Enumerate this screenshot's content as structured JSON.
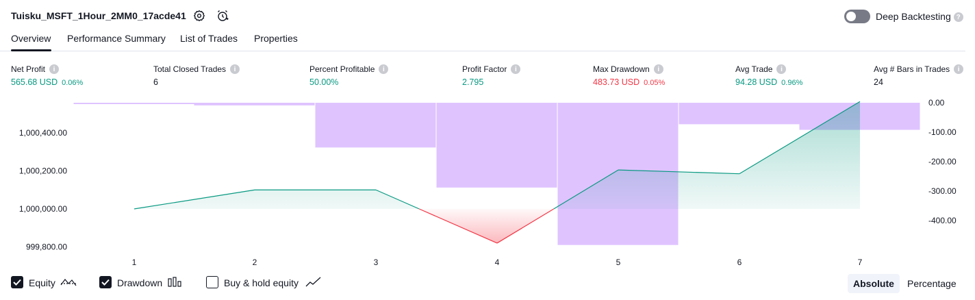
{
  "header": {
    "title": "Tuisku_MSFT_1Hour_2MM0_17acde41",
    "deep_backtesting_label": "Deep Backtesting",
    "deep_backtesting_enabled": false
  },
  "tabs": [
    {
      "label": "Overview",
      "active": true
    },
    {
      "label": "Performance Summary",
      "active": false
    },
    {
      "label": "List of Trades",
      "active": false
    },
    {
      "label": "Properties",
      "active": false
    }
  ],
  "metrics": [
    {
      "label": "Net Profit",
      "value": "565.68 USD",
      "sub": "0.06%",
      "color": "#089981"
    },
    {
      "label": "Total Closed Trades",
      "value": "6",
      "sub": "",
      "color": "#131722"
    },
    {
      "label": "Percent Profitable",
      "value": "50.00%",
      "sub": "",
      "color": "#089981"
    },
    {
      "label": "Profit Factor",
      "value": "2.795",
      "sub": "",
      "color": "#089981"
    },
    {
      "label": "Max Drawdown",
      "value": "483.73 USD",
      "sub": "0.05%",
      "color": "#f23645"
    },
    {
      "label": "Avg Trade",
      "value": "94.28 USD",
      "sub": "0.96%",
      "color": "#089981"
    },
    {
      "label": "Avg # Bars in Trades",
      "value": "24",
      "sub": "",
      "color": "#131722"
    }
  ],
  "chart_data": {
    "type": "line",
    "x": [
      1,
      2,
      3,
      4,
      5,
      6,
      7
    ],
    "equity_baseline": 1000000,
    "series": [
      {
        "values": [
          1000000,
          1000100,
          1000100,
          999820,
          1000205,
          1000185,
          1000565
        ]
      },
      {
        "values": [
          -2,
          -9,
          -152,
          -288,
          -483,
          -73,
          -92
        ]
      }
    ],
    "left_axis": {
      "ticks": [
        "1,000,400.00",
        "1,000,200.00",
        "1,000,000.00",
        "999,800.00"
      ],
      "values": [
        1000400,
        1000200,
        1000000,
        999800
      ]
    },
    "right_axis": {
      "ticks": [
        "0.00",
        "-100.00",
        "-200.00",
        "-300.00",
        "-400.00"
      ],
      "values": [
        0,
        -100,
        -200,
        -300,
        -400
      ]
    },
    "x_ticks": [
      "1",
      "2",
      "3",
      "4",
      "5",
      "6",
      "7"
    ],
    "colors": {
      "equity_up": "#089981",
      "equity_down": "#f23645",
      "drawdown": "#d9b8ff"
    }
  },
  "legend": [
    {
      "label": "Equity",
      "checked": true,
      "icon": "equity-line-icon"
    },
    {
      "label": "Drawdown",
      "checked": true,
      "icon": "drawdown-bars-icon"
    },
    {
      "label": "Buy & hold equity",
      "checked": false,
      "icon": "buy-hold-line-icon"
    }
  ],
  "scale_buttons": [
    {
      "label": "Absolute",
      "active": true
    },
    {
      "label": "Percentage",
      "active": false
    }
  ]
}
